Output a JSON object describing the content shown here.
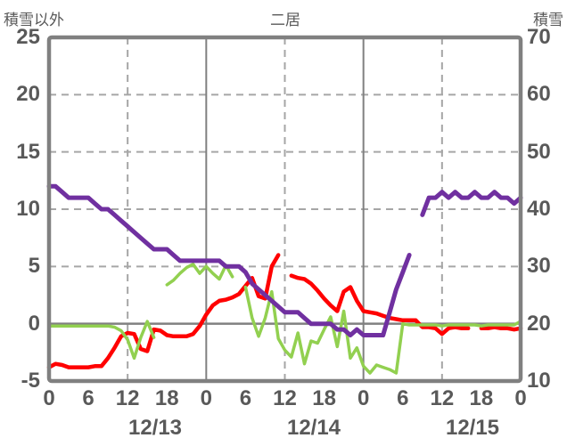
{
  "header": {
    "left_axis_title": "積雪以外",
    "title": "二居",
    "right_axis_title": "積雪"
  },
  "colors": {
    "background": "#ffffff",
    "plot_border": "#808080",
    "grid_dashed": "#a6a6a6",
    "zero_line": "#808080",
    "text": "#595959",
    "red_series": "#ff0000",
    "green_series": "#92d050",
    "purple_series": "#7030a0"
  },
  "chart_data": {
    "type": "line",
    "title": "二居",
    "x": {
      "start_hour": 0,
      "end_hour": 72,
      "tick_step_hours": 6,
      "tick_labels": [
        "0",
        "6",
        "12",
        "18",
        "0",
        "6",
        "12",
        "18",
        "0",
        "6",
        "12",
        "18",
        "0"
      ],
      "date_labels": [
        "12/13",
        "12/14",
        "12/15"
      ]
    },
    "y_left": {
      "title": "積雪以外",
      "min": -5,
      "max": 25,
      "tick_labels": [
        "25",
        "20",
        "15",
        "10",
        "5",
        "0",
        "-5"
      ]
    },
    "y_right": {
      "title": "積雪",
      "min": 10,
      "max": 70,
      "tick_labels": [
        "70",
        "60",
        "50",
        "40",
        "30",
        "20",
        "10"
      ]
    },
    "grid": {
      "horizontal_dashed_left_values": [
        20,
        15,
        10,
        5
      ],
      "zero_line_left_value": 0,
      "vertical_dashed_hours": [
        12,
        36,
        60
      ],
      "vertical_solid_hours": [
        24,
        48
      ],
      "legend": "none"
    },
    "series": [
      {
        "name": "red-line",
        "axis": "left",
        "color": "#ff0000",
        "width": 4.5,
        "values": [
          -3.8,
          -3.5,
          -3.6,
          -3.8,
          -3.8,
          -3.8,
          -3.8,
          -3.7,
          -3.7,
          -3.0,
          -2.1,
          -1.1,
          -0.8,
          -0.9,
          -2.2,
          -2.4,
          -0.5,
          -0.6,
          -1.0,
          -1.1,
          -1.1,
          -1.1,
          -0.9,
          -0.2,
          0.8,
          1.6,
          2.0,
          2.1,
          2.3,
          2.6,
          3.3,
          4.0,
          2.4,
          2.2,
          5.0,
          6.0,
          null,
          4.2,
          4.0,
          3.9,
          3.5,
          2.9,
          2.2,
          1.6,
          1.1,
          2.8,
          3.2,
          2.0,
          1.1,
          1.0,
          0.9,
          0.7,
          0.5,
          0.4,
          0.3,
          0.3,
          0.3,
          -0.3,
          -0.3,
          -0.4,
          -0.9,
          -0.4,
          -0.3,
          -0.4,
          -0.4,
          null,
          -0.4,
          -0.4,
          -0.3,
          -0.4,
          -0.4,
          -0.5,
          -0.4
        ]
      },
      {
        "name": "green-line",
        "axis": "left",
        "color": "#92d050",
        "width": 3.5,
        "values": [
          -0.2,
          -0.2,
          -0.2,
          -0.2,
          -0.2,
          -0.2,
          -0.2,
          -0.2,
          -0.2,
          -0.2,
          -0.3,
          -0.6,
          -1.4,
          -3.0,
          -1.2,
          0.2,
          -1.2,
          null,
          3.4,
          3.8,
          4.4,
          4.9,
          5.2,
          4.4,
          5.0,
          4.4,
          3.9,
          5.1,
          4.1,
          null,
          3.2,
          0.5,
          -1.1,
          0.5,
          2.8,
          -1.3,
          -2.3,
          -2.9,
          -0.8,
          -3.5,
          -1.5,
          -1.7,
          -0.5,
          0.6,
          -2.0,
          1.1,
          -3.0,
          -2.1,
          -3.7,
          -4.3,
          -3.6,
          -3.8,
          -4.0,
          -4.3,
          0.0,
          -0.1,
          -0.1,
          -0.1,
          -0.1,
          -0.1,
          -0.2,
          -0.1,
          -0.1,
          -0.1,
          -0.1,
          -0.1,
          -0.2,
          -0.1,
          -0.1,
          -0.1,
          -0.1,
          -0.1,
          0.2
        ]
      },
      {
        "name": "purple-line",
        "axis": "right",
        "color": "#7030a0",
        "width": 5,
        "values": [
          44,
          44,
          43,
          42,
          42,
          42,
          42,
          41,
          40,
          40,
          39,
          38,
          37,
          36,
          35,
          34,
          33,
          33,
          33,
          32,
          31,
          31,
          31,
          31,
          31,
          31,
          31,
          30,
          30,
          30,
          29,
          27,
          26,
          25,
          24,
          23,
          22,
          22,
          22,
          21,
          20,
          20,
          20,
          20,
          19,
          19,
          18,
          19,
          18,
          18,
          18,
          18,
          22,
          26,
          29,
          32,
          null,
          39,
          42,
          42,
          43,
          42,
          43,
          42,
          42,
          43,
          42,
          42,
          43,
          42,
          42,
          41,
          42
        ]
      }
    ]
  }
}
